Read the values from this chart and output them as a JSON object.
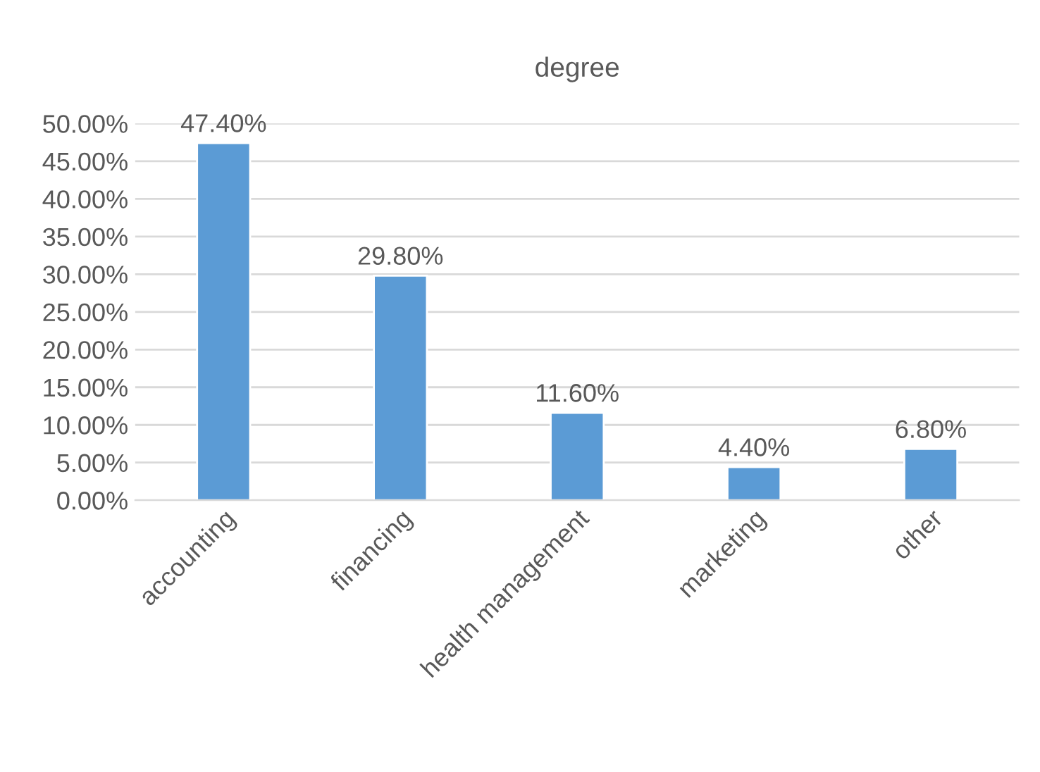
{
  "chart_data": {
    "type": "bar",
    "title": "degree",
    "categories": [
      "accounting",
      "financing",
      "health management",
      "marketing",
      "other"
    ],
    "values": [
      47.4,
      29.8,
      11.6,
      4.4,
      6.8
    ],
    "value_labels": [
      "47.40%",
      "29.80%",
      "11.60%",
      "4.40%",
      "6.80%"
    ],
    "color": "#5b9bd5",
    "ylim": [
      0,
      50
    ],
    "yticks": [
      {
        "value": 0,
        "label": "0.00%"
      },
      {
        "value": 5,
        "label": "5.00%"
      },
      {
        "value": 10,
        "label": "10.00%"
      },
      {
        "value": 15,
        "label": "15.00%"
      },
      {
        "value": 20,
        "label": "20.00%"
      },
      {
        "value": 25,
        "label": "25.00%"
      },
      {
        "value": 30,
        "label": "30.00%"
      },
      {
        "value": 35,
        "label": "35.00%"
      },
      {
        "value": 40,
        "label": "40.00%"
      },
      {
        "value": 45,
        "label": "45.00%"
      },
      {
        "value": 50,
        "label": "50.00%"
      }
    ],
    "grid": "y"
  }
}
